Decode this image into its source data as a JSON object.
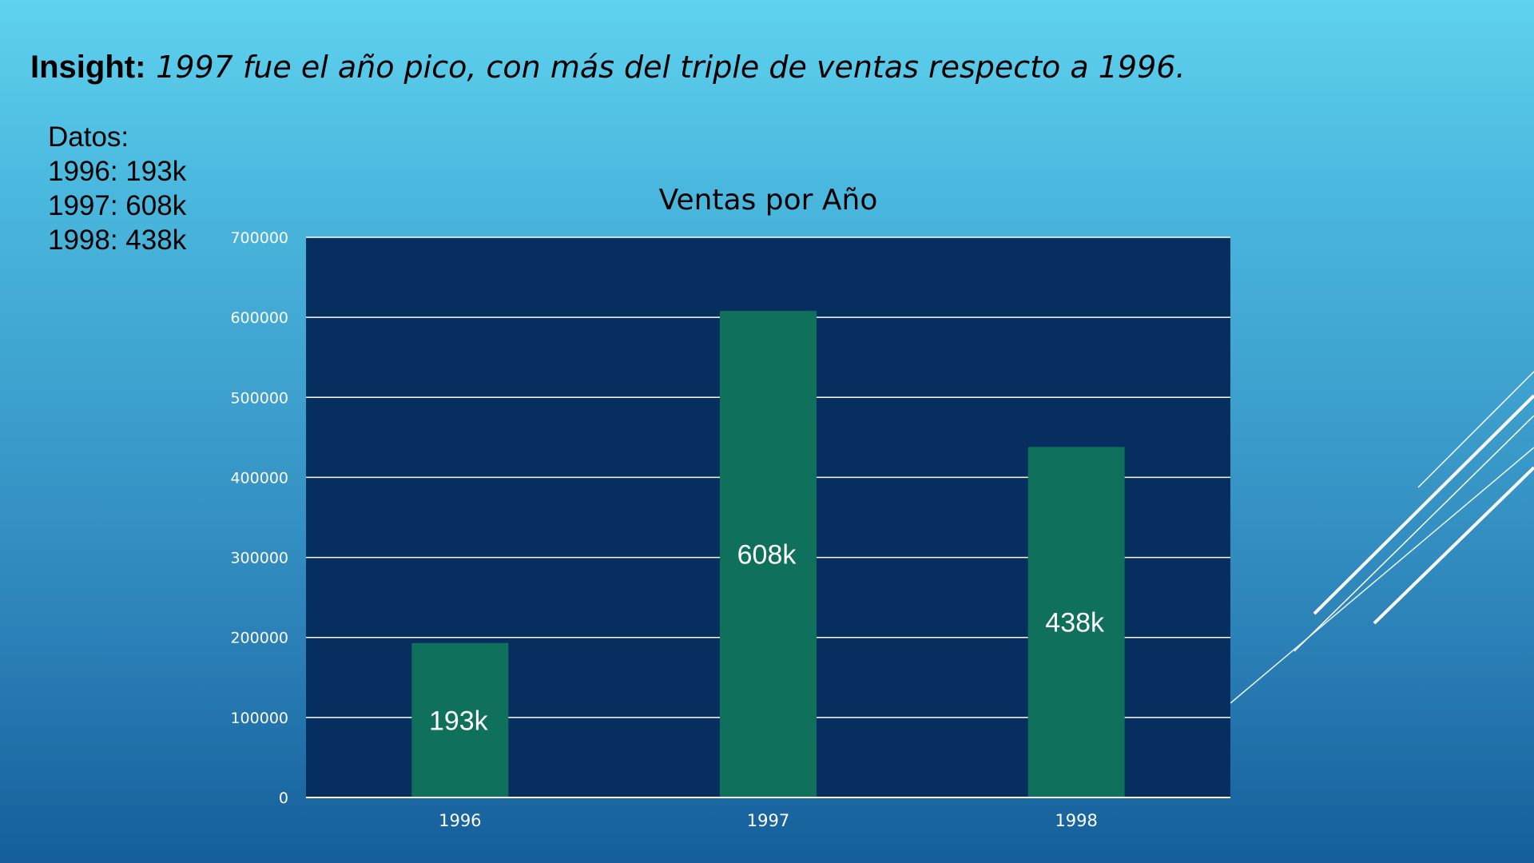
{
  "insight": {
    "label": "Insight:",
    "text": "1997 fue el año pico, con más del triple de ventas respecto a 1996."
  },
  "data_box": {
    "heading": "Datos:",
    "lines": [
      "1996: 193k",
      "1997: 608k",
      "1998: 438k"
    ]
  },
  "colors": {
    "plot_area": "#062e5e",
    "bar": "#0f705b",
    "gridline": "#ffffff",
    "text_light": "#ffffff",
    "text_dark": "#000000"
  },
  "chart_data": {
    "type": "bar",
    "title": "Ventas por Año",
    "xlabel": "",
    "ylabel": "",
    "categories": [
      "1996",
      "1997",
      "1998"
    ],
    "values": [
      193000,
      608000,
      438000
    ],
    "data_labels": [
      "193k",
      "608k",
      "438k"
    ],
    "ylim": [
      0,
      700000
    ],
    "yticks": [
      0,
      100000,
      200000,
      300000,
      400000,
      500000,
      600000,
      700000
    ],
    "ytick_labels": [
      "0",
      "100000",
      "200000",
      "300000",
      "400000",
      "500000",
      "600000",
      "700000"
    ],
    "grid": true,
    "legend": "none"
  }
}
